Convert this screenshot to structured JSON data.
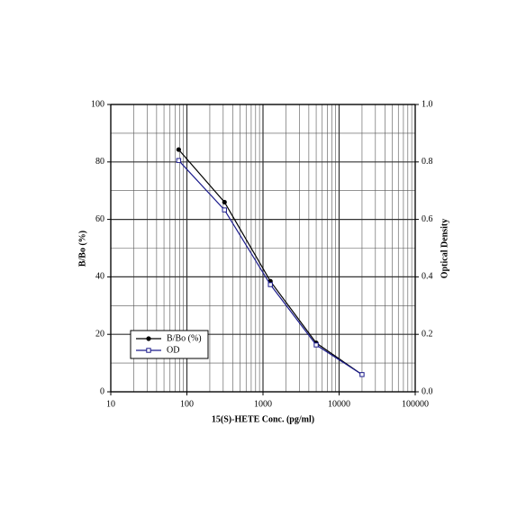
{
  "chart_data": {
    "type": "line",
    "x_label": "15(S)-HETE Conc. (pg/ml)",
    "y_label": "B/Bo (%)",
    "y2_label": "Optical Density",
    "x": [
      78,
      312,
      1250,
      5000,
      20000
    ],
    "series": [
      {
        "name": "B/Bo (%)",
        "color": "#000000",
        "marker": "circle",
        "values": [
          84.3,
          66,
          38.5,
          17,
          6
        ]
      },
      {
        "name": "OD",
        "color": "#1c1c8c",
        "marker": "square",
        "axis": "y2",
        "values": [
          0.805,
          0.633,
          0.373,
          0.163,
          0.06
        ]
      }
    ],
    "xlim": [
      10,
      100000
    ],
    "xticks": [
      10,
      100,
      1000,
      10000,
      100000
    ],
    "xscale": "log",
    "ylim": [
      0,
      100
    ],
    "yticks": [
      0,
      20,
      40,
      60,
      80,
      100
    ],
    "y2lim": [
      0,
      1
    ],
    "y2ticks": [
      {
        "value": 0,
        "label": "0.0"
      },
      0.2,
      0.4,
      0.6,
      0.8,
      {
        "value": 1,
        "label": "1.0"
      }
    ],
    "grid": true,
    "legend": "lower left"
  }
}
